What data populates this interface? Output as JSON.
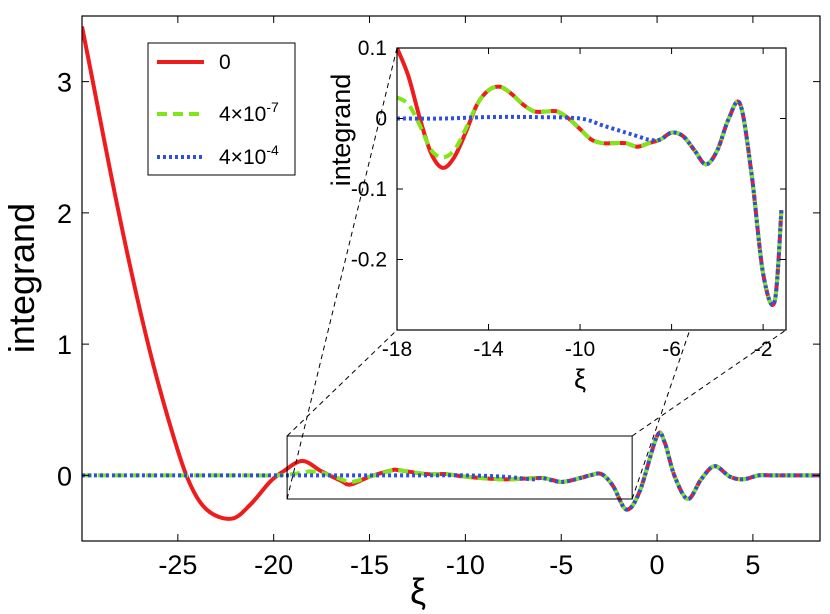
{
  "chart_data": [
    {
      "id": "main",
      "type": "line",
      "title": "",
      "xlabel": "ξ",
      "ylabel": "integrand",
      "xlim": [
        -30,
        8.5
      ],
      "ylim": [
        -0.5,
        3.5
      ],
      "xticks": [
        -25,
        -20,
        -15,
        -10,
        -5,
        0,
        5
      ],
      "xtick_labels": [
        "-25",
        "-20",
        "-15",
        "-10",
        "-5",
        "0",
        "5"
      ],
      "yticks": [
        0,
        1,
        2,
        3
      ],
      "ytick_labels": [
        "0",
        "1",
        "2",
        "3"
      ],
      "grid": false,
      "legend": {
        "position": "top-left",
        "title": "",
        "entries": [
          {
            "label": "0",
            "color": "#ee1c1c",
            "style": "solid"
          },
          {
            "label": "4×10",
            "exponent": "-7",
            "color": "#7ee619",
            "style": "dashed"
          },
          {
            "label": "4×10",
            "exponent": "-4",
            "color": "#2c4fe0",
            "style": "dotted"
          }
        ]
      },
      "zoom_box": {
        "x": [
          -19.3,
          -1.3
        ],
        "y": [
          -0.18,
          0.3
        ]
      },
      "series": [
        {
          "name": "0",
          "color": "#ee1c1c",
          "style": "solid",
          "x": [
            -30.0,
            -29.5,
            -28.5,
            -27.5,
            -26.5,
            -25.5,
            -24.5,
            -23.5,
            -22.2,
            -21.2,
            -20.2,
            -19.5,
            -18.5,
            -17.5,
            -16.5,
            -16.0,
            -15.0,
            -13.8,
            -13.5,
            -12.0,
            -11.0,
            -10.0,
            -8.0,
            -6.0,
            -5.0,
            -4.0,
            -3.5,
            -2.9,
            -2.3,
            -1.6,
            -0.9,
            0.0,
            0.4,
            0.9,
            1.6,
            2.3,
            3.0,
            3.8,
            4.5,
            5.3,
            6.0,
            7.0,
            8.5
          ],
          "y": [
            3.42,
            3.05,
            2.3,
            1.6,
            0.97,
            0.43,
            -0.02,
            -0.26,
            -0.33,
            -0.22,
            -0.05,
            0.03,
            0.11,
            0.03,
            -0.04,
            -0.07,
            -0.01,
            0.04,
            0.04,
            0.01,
            0.01,
            -0.01,
            -0.03,
            -0.02,
            -0.05,
            -0.02,
            0.0,
            0.01,
            -0.08,
            -0.26,
            -0.12,
            0.3,
            0.25,
            0.0,
            -0.18,
            -0.03,
            0.07,
            -0.01,
            -0.03,
            0.0,
            0.0,
            0.0,
            0.0
          ]
        },
        {
          "name": "4×10^-7",
          "color": "#7ee619",
          "style": "dashed",
          "x": [
            -30.0,
            -25.0,
            -22.0,
            -20.0,
            -19.0,
            -18.0,
            -17.0,
            -16.0,
            -15.0,
            -13.8,
            -13.5,
            -12.0,
            -11.0,
            -10.0,
            -8.0,
            -6.0,
            -5.0,
            -4.0,
            -3.5,
            -2.9,
            -2.3,
            -1.6,
            -0.9,
            0.0,
            0.4,
            0.9,
            1.6,
            2.3,
            3.0,
            3.8,
            4.5,
            5.3,
            6.0,
            7.0,
            8.5
          ],
          "y": [
            0.0,
            0.0,
            0.0,
            0.0,
            0.01,
            0.03,
            0.0,
            -0.05,
            -0.01,
            0.04,
            0.04,
            0.01,
            0.01,
            -0.01,
            -0.03,
            -0.02,
            -0.05,
            -0.02,
            0.0,
            0.01,
            -0.08,
            -0.26,
            -0.12,
            0.3,
            0.25,
            0.0,
            -0.18,
            -0.03,
            0.07,
            -0.01,
            -0.03,
            0.0,
            0.0,
            0.0,
            0.0
          ]
        },
        {
          "name": "4×10^-4",
          "color": "#2c4fe0",
          "style": "dotted",
          "x": [
            -30.0,
            -25.0,
            -20.0,
            -15.0,
            -12.0,
            -10.0,
            -8.0,
            -6.5,
            -6.0,
            -5.0,
            -4.0,
            -3.5,
            -2.9,
            -2.3,
            -1.6,
            -0.9,
            0.0,
            0.4,
            0.9,
            1.6,
            2.3,
            3.0,
            3.8,
            4.5,
            5.3,
            6.0,
            7.0,
            8.5
          ],
          "y": [
            0.0,
            0.0,
            0.0,
            0.0,
            0.0,
            0.0,
            -0.01,
            -0.03,
            -0.02,
            -0.05,
            -0.02,
            0.0,
            0.01,
            -0.08,
            -0.26,
            -0.12,
            0.3,
            0.25,
            0.0,
            -0.18,
            -0.03,
            0.07,
            -0.01,
            -0.03,
            0.0,
            0.0,
            0.0,
            0.0
          ]
        }
      ]
    },
    {
      "id": "inset",
      "type": "line",
      "title": "",
      "xlabel": "ξ",
      "ylabel": "integrand",
      "xlim": [
        -18,
        -1
      ],
      "ylim": [
        -0.3,
        0.1
      ],
      "xticks": [
        -18,
        -14,
        -10,
        -6,
        -2
      ],
      "xtick_labels": [
        "-18",
        "-14",
        "-10",
        "-6",
        "-2"
      ],
      "yticks": [
        0.1,
        0,
        -0.1,
        -0.2
      ],
      "ytick_labels": [
        "0.1",
        "0",
        "-0.1",
        "-0.2"
      ],
      "grid": false,
      "series": [
        {
          "name": "0",
          "color": "#ee1c1c",
          "style": "solid",
          "x": [
            -18.0,
            -17.5,
            -17.0,
            -16.5,
            -16.0,
            -15.5,
            -15.0,
            -14.5,
            -14.0,
            -13.5,
            -13.0,
            -12.5,
            -12.0,
            -11.5,
            -11.0,
            -10.5,
            -10.0,
            -9.5,
            -9.0,
            -8.5,
            -8.0,
            -7.5,
            -7.0,
            -6.5,
            -6.0,
            -5.5,
            -5.0,
            -4.5,
            -4.0,
            -3.5,
            -3.0,
            -2.5,
            -2.0,
            -1.5,
            -1.2
          ],
          "y": [
            0.1,
            0.06,
            0.0,
            -0.05,
            -0.07,
            -0.055,
            -0.02,
            0.02,
            0.04,
            0.045,
            0.035,
            0.02,
            0.01,
            0.01,
            0.01,
            0.0,
            -0.015,
            -0.03,
            -0.035,
            -0.035,
            -0.035,
            -0.04,
            -0.035,
            -0.03,
            -0.02,
            -0.025,
            -0.045,
            -0.065,
            -0.045,
            0.0,
            0.02,
            -0.08,
            -0.22,
            -0.26,
            -0.13
          ]
        },
        {
          "name": "4×10^-7",
          "color": "#7ee619",
          "style": "dashed",
          "x": [
            -18.0,
            -17.5,
            -17.0,
            -16.5,
            -16.0,
            -15.5,
            -15.0,
            -14.5,
            -14.0,
            -13.5,
            -13.0,
            -12.5,
            -12.0,
            -11.5,
            -11.0,
            -10.5,
            -10.0,
            -9.5,
            -9.0,
            -8.5,
            -8.0,
            -7.5,
            -7.0,
            -6.5,
            -6.0,
            -5.5,
            -5.0,
            -4.5,
            -4.0,
            -3.5,
            -3.0,
            -2.5,
            -2.0,
            -1.5,
            -1.2
          ],
          "y": [
            0.03,
            0.02,
            -0.01,
            -0.045,
            -0.055,
            -0.045,
            -0.015,
            0.02,
            0.04,
            0.045,
            0.035,
            0.02,
            0.01,
            0.01,
            0.01,
            0.0,
            -0.015,
            -0.03,
            -0.035,
            -0.035,
            -0.035,
            -0.04,
            -0.035,
            -0.03,
            -0.02,
            -0.025,
            -0.045,
            -0.065,
            -0.045,
            0.0,
            0.02,
            -0.08,
            -0.22,
            -0.26,
            -0.13
          ]
        },
        {
          "name": "4×10^-4",
          "color": "#2c4fe0",
          "style": "dotted",
          "x": [
            -18.0,
            -16.0,
            -14.0,
            -12.0,
            -10.0,
            -9.0,
            -8.0,
            -7.5,
            -7.0,
            -6.5,
            -6.0,
            -5.5,
            -5.0,
            -4.5,
            -4.0,
            -3.5,
            -3.0,
            -2.5,
            -2.0,
            -1.5,
            -1.2
          ],
          "y": [
            0.0,
            0.0,
            0.002,
            0.002,
            0.0,
            -0.01,
            -0.02,
            -0.025,
            -0.03,
            -0.03,
            -0.02,
            -0.025,
            -0.045,
            -0.065,
            -0.045,
            0.0,
            0.02,
            -0.08,
            -0.22,
            -0.26,
            -0.13
          ]
        }
      ]
    }
  ]
}
